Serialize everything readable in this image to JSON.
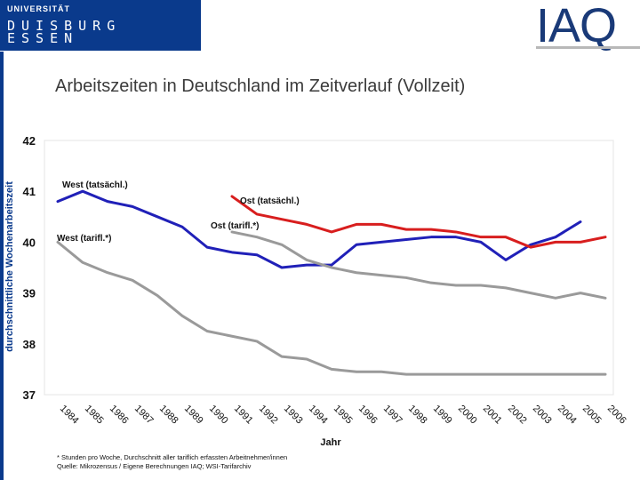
{
  "header": {
    "university": "UNIVERSITÄT",
    "city_line1": "DUISBURG",
    "city_line2": "ESSEN",
    "institute": "IAQ"
  },
  "slide": {
    "title": "Arbeitszeiten in Deutschland im Zeitverlauf (Vollzeit)",
    "footnote": "* Stunden pro Woche, Durchschnitt aller tariflich erfassten Arbeitnehmer/innen",
    "source": "Quelle: Mikrozensus / Eigene Berechnungen IAQ; WSI-Tarifarchiv"
  },
  "colors": {
    "west_actual": "#2020b8",
    "ost_actual": "#d81e1e",
    "tariff": "#9a9a9a",
    "brand": "#0a3a8c"
  },
  "chart_data": {
    "type": "line",
    "title": "",
    "xlabel": "Jahr",
    "ylabel": "durchschnittliche Wochenarbeitszeit",
    "ylim": [
      37,
      42
    ],
    "yticks": [
      "37",
      "38",
      "39",
      "40",
      "41",
      "42"
    ],
    "x": [
      "1984",
      "1985",
      "1986",
      "1987",
      "1988",
      "1989",
      "1990",
      "1991",
      "1992",
      "1993",
      "1994",
      "1995",
      "1996",
      "1997",
      "1998",
      "1999",
      "2000",
      "2001",
      "2002",
      "2003",
      "2004",
      "2005",
      "2006"
    ],
    "series": [
      {
        "name": "West (tatsächl.)",
        "label": "West (tatsächl.)",
        "color_key": "west_actual",
        "values": [
          40.8,
          41.0,
          40.8,
          40.7,
          40.5,
          40.3,
          39.9,
          39.8,
          39.75,
          39.5,
          39.55,
          39.55,
          39.95,
          40.0,
          40.05,
          40.1,
          40.1,
          40.0,
          39.65,
          39.95,
          40.1,
          40.4,
          null
        ]
      },
      {
        "name": "Ost (tatsächl.)",
        "label": "Ost (tatsächl.)",
        "color_key": "ost_actual",
        "values": [
          null,
          null,
          null,
          null,
          null,
          null,
          null,
          40.9,
          40.55,
          40.45,
          40.35,
          40.2,
          40.35,
          40.35,
          40.25,
          40.25,
          40.2,
          40.1,
          40.1,
          39.9,
          40.0,
          40.0,
          40.1
        ]
      },
      {
        "name": "Ost (tarifl.*)",
        "label": "Ost (tarifl.*)",
        "color_key": "tariff",
        "values": [
          null,
          null,
          null,
          null,
          null,
          null,
          null,
          40.2,
          40.1,
          39.95,
          39.65,
          39.5,
          39.4,
          39.35,
          39.3,
          39.2,
          39.15,
          39.15,
          39.1,
          39.0,
          38.9,
          39.0,
          38.9
        ]
      },
      {
        "name": "West (tarifl.*)",
        "label": "West (tarifl.*)",
        "color_key": "tariff",
        "values": [
          40.0,
          39.6,
          39.4,
          39.25,
          38.95,
          38.55,
          38.25,
          38.15,
          38.05,
          37.75,
          37.7,
          37.5,
          37.45,
          37.45,
          37.4,
          37.4,
          37.4,
          37.4,
          37.4,
          37.4,
          37.4,
          37.4,
          37.4
        ]
      }
    ]
  }
}
